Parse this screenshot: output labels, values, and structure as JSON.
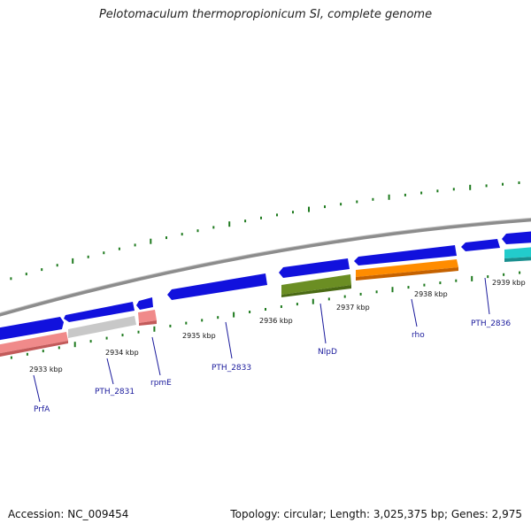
{
  "title": "Pelotomaculum thermopropionicum SI, complete genome",
  "footer": {
    "accession_label": "Accession:",
    "accession": "NC_009454",
    "topology_text": "Topology: circular; Length: 3,025,375 bp; Genes: 2,975"
  },
  "colors": {
    "backbone": "#8c8c8c",
    "tick": "#1e7a1e",
    "forward_gene": "#1111dd",
    "label": "#1a1a9c"
  },
  "kbp_labels": [
    "2933 kbp",
    "2934 kbp",
    "2935 kbp",
    "2936 kbp",
    "2937 kbp",
    "2938 kbp",
    "2939 kbp"
  ],
  "genes": [
    {
      "id": "g1",
      "label": "",
      "color": "#1111dd"
    },
    {
      "id": "g2",
      "label": "",
      "color": "#1111dd"
    },
    {
      "id": "g3",
      "label": "",
      "color": "#1111dd"
    },
    {
      "id": "g4",
      "label": "PTH_2833",
      "color": "#1111dd"
    },
    {
      "id": "g5",
      "label": "",
      "color": "#1111dd"
    },
    {
      "id": "g6",
      "label": "",
      "color": "#1111dd"
    },
    {
      "id": "g7",
      "label": "",
      "color": "#1111dd"
    },
    {
      "id": "g8",
      "label": "",
      "color": "#1111dd"
    },
    {
      "id": "g9",
      "label": "PrfA",
      "color": "#f08a8a"
    },
    {
      "id": "g10",
      "label": "PTH_2831",
      "color": "#c8c8c8"
    },
    {
      "id": "g11",
      "label": "rpmE",
      "color": "#f08a8a"
    },
    {
      "id": "g12",
      "label": "NlpD",
      "color": "#6b8e23"
    },
    {
      "id": "g13",
      "label": "rho",
      "color": "#ff8c00"
    },
    {
      "id": "g14",
      "label": "PTH_2836",
      "color": "#22cccc"
    }
  ]
}
